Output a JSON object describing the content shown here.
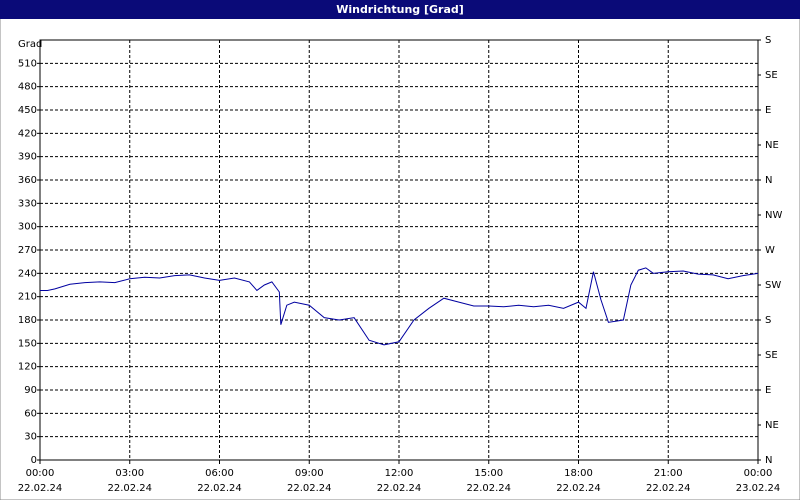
{
  "chart_data": {
    "type": "line",
    "title": "Windrichtung [Grad]",
    "y_label": "Grad",
    "x": [
      0,
      0.25,
      0.5,
      1,
      1.5,
      2,
      2.5,
      3,
      3.5,
      4,
      4.5,
      5,
      5.5,
      6,
      6.5,
      7,
      7.25,
      7.5,
      7.75,
      8,
      8.05,
      8.25,
      8.5,
      9,
      9.5,
      10,
      10.5,
      11,
      11.5,
      12,
      12.5,
      13,
      13.5,
      14,
      14.5,
      15,
      15.5,
      16,
      16.5,
      17,
      17.5,
      18,
      18.25,
      18.5,
      18.75,
      19,
      19.5,
      19.75,
      20,
      20.25,
      20.5,
      21,
      21.5,
      22,
      22.5,
      23,
      23.5,
      24
    ],
    "series": [
      {
        "name": "Windrichtung",
        "color": "#0000a0",
        "values": [
          218,
          218,
          220,
          226,
          228,
          229,
          228,
          233,
          235,
          234,
          237,
          238,
          234,
          231,
          234,
          229,
          218,
          225,
          229,
          216,
          174,
          199,
          203,
          199,
          183,
          180,
          183,
          154,
          148,
          152,
          180,
          195,
          208,
          203,
          198,
          198,
          197,
          199,
          197,
          199,
          195,
          203,
          195,
          242,
          206,
          177,
          180,
          225,
          244,
          247,
          240,
          242,
          243,
          239,
          238,
          233,
          237,
          240
        ]
      }
    ],
    "xlim": [
      0,
      24
    ],
    "xticks": [
      {
        "value": 0,
        "label": "00:00",
        "date": "22.02.24"
      },
      {
        "value": 3,
        "label": "03:00",
        "date": "22.02.24"
      },
      {
        "value": 6,
        "label": "06:00",
        "date": "22.02.24"
      },
      {
        "value": 9,
        "label": "09:00",
        "date": "22.02.24"
      },
      {
        "value": 12,
        "label": "12:00",
        "date": "22.02.24"
      },
      {
        "value": 15,
        "label": "15:00",
        "date": "22.02.24"
      },
      {
        "value": 18,
        "label": "18:00",
        "date": "22.02.24"
      },
      {
        "value": 21,
        "label": "21:00",
        "date": "22.02.24"
      },
      {
        "value": 24,
        "label": "00:00",
        "date": "23.02.24"
      }
    ],
    "ylim": [
      0,
      540
    ],
    "yticks": [
      0,
      30,
      60,
      90,
      120,
      150,
      180,
      210,
      240,
      270,
      300,
      330,
      360,
      390,
      420,
      450,
      480,
      510
    ],
    "y2lim": [
      0,
      540
    ],
    "y2ticks": [
      {
        "value": 0,
        "label": "N"
      },
      {
        "value": 45,
        "label": "NE"
      },
      {
        "value": 90,
        "label": "E"
      },
      {
        "value": 135,
        "label": "SE"
      },
      {
        "value": 180,
        "label": "S"
      },
      {
        "value": 225,
        "label": "SW"
      },
      {
        "value": 270,
        "label": "W"
      },
      {
        "value": 315,
        "label": "NW"
      },
      {
        "value": 360,
        "label": "N"
      },
      {
        "value": 405,
        "label": "NE"
      },
      {
        "value": 450,
        "label": "E"
      },
      {
        "value": 495,
        "label": "SE"
      },
      {
        "value": 540,
        "label": "S"
      }
    ],
    "grid": true
  }
}
